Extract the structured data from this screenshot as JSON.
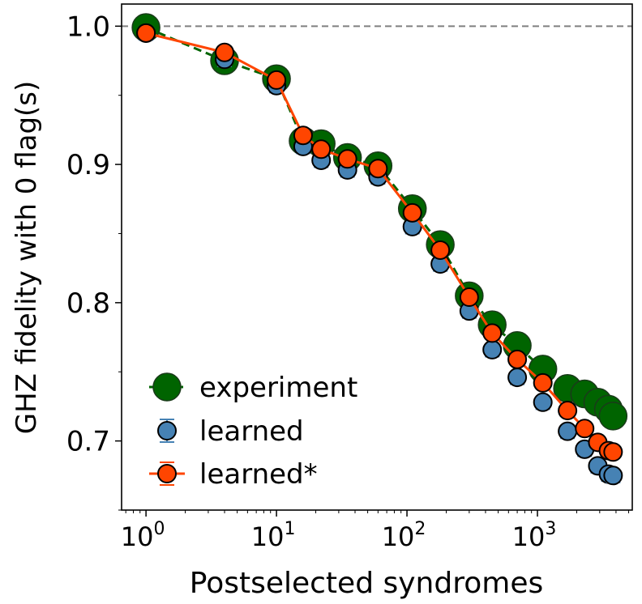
{
  "chart_data": {
    "type": "line",
    "xlabel": "Postselected syndromes",
    "ylabel": "GHZ fidelity with 0 flag(s)",
    "xscale": "log",
    "xlim": [
      0.65,
      5330
    ],
    "ylim": [
      0.65,
      1.016
    ],
    "x_ticks": [
      {
        "value": 1,
        "base": "10",
        "exp": "0"
      },
      {
        "value": 10,
        "base": "10",
        "exp": "1"
      },
      {
        "value": 100,
        "base": "10",
        "exp": "2"
      },
      {
        "value": 1000,
        "base": "10",
        "exp": "3"
      }
    ],
    "y_ticks": [
      {
        "value": 0.7,
        "label": "0.7"
      },
      {
        "value": 0.8,
        "label": "0.8"
      },
      {
        "value": 0.9,
        "label": "0.9"
      },
      {
        "value": 1.0,
        "label": "1.0"
      }
    ],
    "y_minor_ticks": [
      0.65,
      0.75,
      0.85,
      0.95
    ],
    "reference_line": {
      "y": 1.0,
      "style": "dashed",
      "color": "#808080"
    },
    "grid": false,
    "legend": "lower-left",
    "x": [
      1,
      4,
      10,
      16,
      22,
      35,
      60,
      110,
      180,
      300,
      450,
      700,
      1100,
      1700,
      2300,
      2900,
      3500,
      3800
    ],
    "series": [
      {
        "name": "experiment",
        "color": "#006400",
        "line": "dashed",
        "values": [
          0.999,
          0.975,
          0.962,
          0.917,
          0.915,
          0.905,
          0.899,
          0.868,
          0.842,
          0.805,
          0.784,
          0.769,
          0.752,
          0.738,
          0.734,
          0.728,
          0.723,
          0.718
        ]
      },
      {
        "name": "learned",
        "color": "#4682B4",
        "line": "none",
        "yerr": 0.005,
        "values": [
          0.995,
          0.976,
          0.957,
          0.913,
          0.903,
          0.896,
          0.891,
          0.855,
          0.828,
          0.794,
          0.766,
          0.746,
          0.728,
          0.707,
          0.694,
          0.682,
          0.676,
          0.675
        ]
      },
      {
        "name": "learned*",
        "color": "#FF4500",
        "line": "solid",
        "yerr": 0.004,
        "values": [
          0.995,
          0.981,
          0.961,
          0.921,
          0.911,
          0.904,
          0.897,
          0.865,
          0.838,
          0.804,
          0.778,
          0.759,
          0.742,
          0.722,
          0.709,
          0.699,
          0.693,
          0.692
        ]
      }
    ]
  }
}
